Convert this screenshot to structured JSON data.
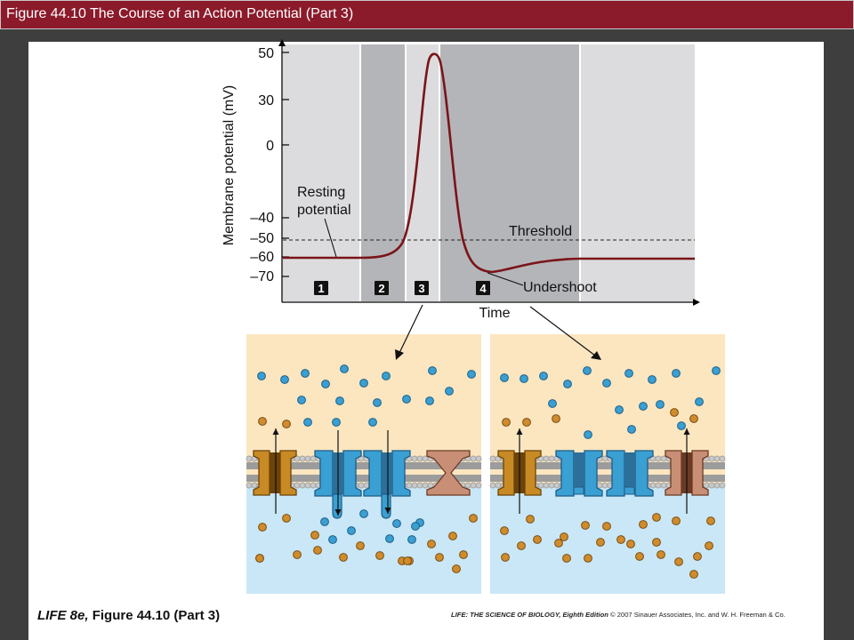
{
  "title": "Figure 44.10 The Course of an Action Potential (Part 3)",
  "graph": {
    "y_axis_label": "Membrane potential (mV)",
    "y_ticks": [
      "50",
      "30",
      "0",
      "–40",
      "–50",
      "–60",
      "–70"
    ],
    "x_axis_label": "Time",
    "labels": {
      "resting": [
        "Resting",
        "potential"
      ],
      "threshold": "Threshold",
      "undershoot": "Undershoot"
    },
    "phases": [
      "1",
      "2",
      "3",
      "4"
    ]
  },
  "caption": {
    "bold": "LIFE 8e,",
    "rest": "Figure 44.10 (Part 3)"
  },
  "credit": {
    "book": "LIFE: THE SCIENCE OF BIOLOGY, Eighth Edition",
    "rest": "© 2007 Sinauer Associates, Inc. and W. H. Freeman & Co."
  },
  "colors": {
    "title_bar": "#8b1a2b",
    "curve": "#7a1418",
    "extracellular": "#fbe6c0",
    "intracellular": "#c9e7f6",
    "sodium": "#3a9fd2",
    "potassium": "#d08c2c"
  }
}
